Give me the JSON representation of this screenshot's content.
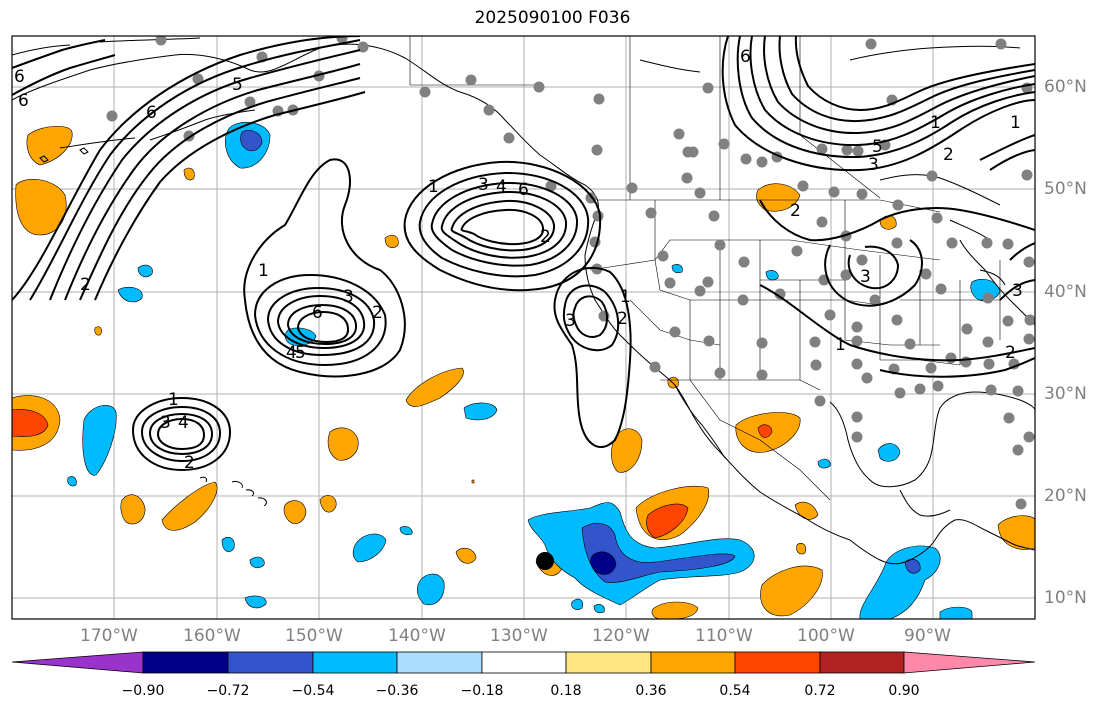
{
  "title": "2025090100 F036",
  "lon_labels": [
    "170°W",
    "160°W",
    "150°W",
    "140°W",
    "130°W",
    "120°W",
    "110°W",
    "100°W",
    "90°W"
  ],
  "lat_labels": [
    "60°N",
    "50°N",
    "40°N",
    "30°N",
    "20°N",
    "10°N"
  ],
  "colorbar": {
    "ticks": [
      "−0.90",
      "−0.72",
      "−0.54",
      "−0.36",
      "−0.18",
      "0.18",
      "0.36",
      "0.54",
      "0.72",
      "0.90"
    ],
    "colors": [
      "#9933cc",
      "#000088",
      "#3355cc",
      "#00bbff",
      "#aaddff",
      "#ffffff",
      "#ffe680",
      "#ffa500",
      "#ff4500",
      "#b22222",
      "#ff88aa"
    ]
  },
  "contour_labels": [
    "6",
    "5",
    "4",
    "3",
    "2",
    "1",
    "3",
    "4",
    "6",
    "2",
    "1",
    "6",
    "5",
    "4",
    "3",
    "2",
    "1",
    "3",
    "4",
    "6",
    "5",
    "1",
    "2",
    "3",
    "1",
    "2",
    "3",
    "6",
    "5",
    "4",
    "3",
    "2",
    "1",
    "3",
    "2",
    "1",
    "2",
    "3"
  ],
  "colors": {
    "gridline": "#b0b0b0",
    "contour": "#000000",
    "coast": "#000000",
    "station_dot": "#808080"
  }
}
